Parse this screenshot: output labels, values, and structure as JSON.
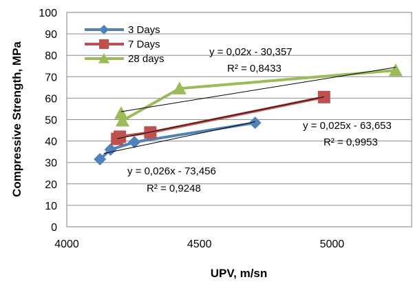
{
  "chart_data": {
    "type": "line",
    "xlabel": "UPV, m/sn",
    "ylabel": "Compressive Strength, MPa",
    "xlim": [
      4000,
      5300
    ],
    "ylim": [
      0,
      100
    ],
    "xticks": [
      "4000",
      "4500",
      "5000"
    ],
    "yticks": [
      "0",
      "10",
      "20",
      "30",
      "40",
      "50",
      "60",
      "70",
      "80",
      "90",
      "100"
    ],
    "grid": true,
    "legend_position": "top-left",
    "series": [
      {
        "name": "3 Days",
        "color": "#4F81BD",
        "marker": "diamond",
        "x": [
          4125,
          4165,
          4255,
          4710
        ],
        "y": [
          31.5,
          36,
          39.5,
          48.5
        ]
      },
      {
        "name": "7 Days",
        "color": "#C0504D",
        "marker": "square",
        "x": [
          4190,
          4200,
          4315,
          4970
        ],
        "y": [
          41,
          42,
          44,
          60.5
        ]
      },
      {
        "name": "28 days",
        "color": "#9BBB59",
        "marker": "triangle",
        "x": [
          4205,
          4210,
          4425,
          5240
        ],
        "y": [
          53,
          49.5,
          64.5,
          73
        ]
      }
    ],
    "trendlines": [
      {
        "series": "3 Days",
        "x": [
          4140,
          4710
        ],
        "y": [
          34.2,
          49.0
        ]
      },
      {
        "series": "7 Days",
        "x": [
          4190,
          4970
        ],
        "y": [
          41.1,
          60.6
        ]
      },
      {
        "series": "28 days",
        "x": [
          4205,
          5240
        ],
        "y": [
          53.7,
          74.4
        ]
      }
    ],
    "annotations": [
      {
        "line1": "y = 0,02x - 30,357",
        "line2": "R² = 0,8433"
      },
      {
        "line1": "y = 0,025x - 63,653",
        "line2": "R² = 0,9953"
      },
      {
        "line1": "y = 0,026x - 73,456",
        "line2": "R² = 0,9248"
      }
    ]
  }
}
